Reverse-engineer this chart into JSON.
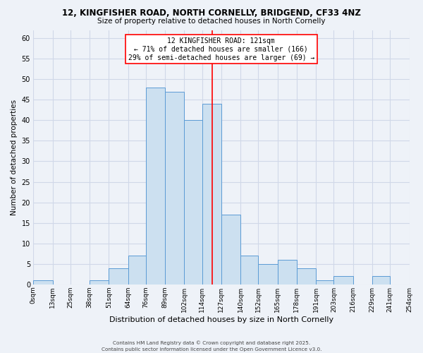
{
  "title1": "12, KINGFISHER ROAD, NORTH CORNELLY, BRIDGEND, CF33 4NZ",
  "title2": "Size of property relative to detached houses in North Cornelly",
  "xlabel": "Distribution of detached houses by size in North Cornelly",
  "ylabel": "Number of detached properties",
  "bin_edges": [
    0,
    13,
    25,
    38,
    51,
    64,
    76,
    89,
    102,
    114,
    127,
    140,
    152,
    165,
    178,
    191,
    203,
    216,
    229,
    241,
    254
  ],
  "bar_heights": [
    1,
    0,
    0,
    1,
    4,
    7,
    48,
    47,
    40,
    44,
    17,
    7,
    5,
    6,
    4,
    1,
    2,
    0,
    2,
    0
  ],
  "bar_facecolor": "#cce0f0",
  "bar_edgecolor": "#5b9bd5",
  "ylim": [
    0,
    62
  ],
  "yticks": [
    0,
    5,
    10,
    15,
    20,
    25,
    30,
    35,
    40,
    45,
    50,
    55,
    60
  ],
  "grid_color": "#d0d8e8",
  "bg_color": "#eef2f8",
  "reference_line_x": 121,
  "reference_line_color": "red",
  "annotation_title": "12 KINGFISHER ROAD: 121sqm",
  "annotation_line1": "← 71% of detached houses are smaller (166)",
  "annotation_line2": "29% of semi-detached houses are larger (69) →",
  "annotation_box_edgecolor": "red",
  "annotation_box_facecolor": "white",
  "footer1": "Contains HM Land Registry data © Crown copyright and database right 2025.",
  "footer2": "Contains public sector information licensed under the Open Government Licence v3.0.",
  "x_tick_labels": [
    "0sqm",
    "13sqm",
    "25sqm",
    "38sqm",
    "51sqm",
    "64sqm",
    "76sqm",
    "89sqm",
    "102sqm",
    "114sqm",
    "127sqm",
    "140sqm",
    "152sqm",
    "165sqm",
    "178sqm",
    "191sqm",
    "203sqm",
    "216sqm",
    "229sqm",
    "241sqm",
    "254sqm"
  ]
}
